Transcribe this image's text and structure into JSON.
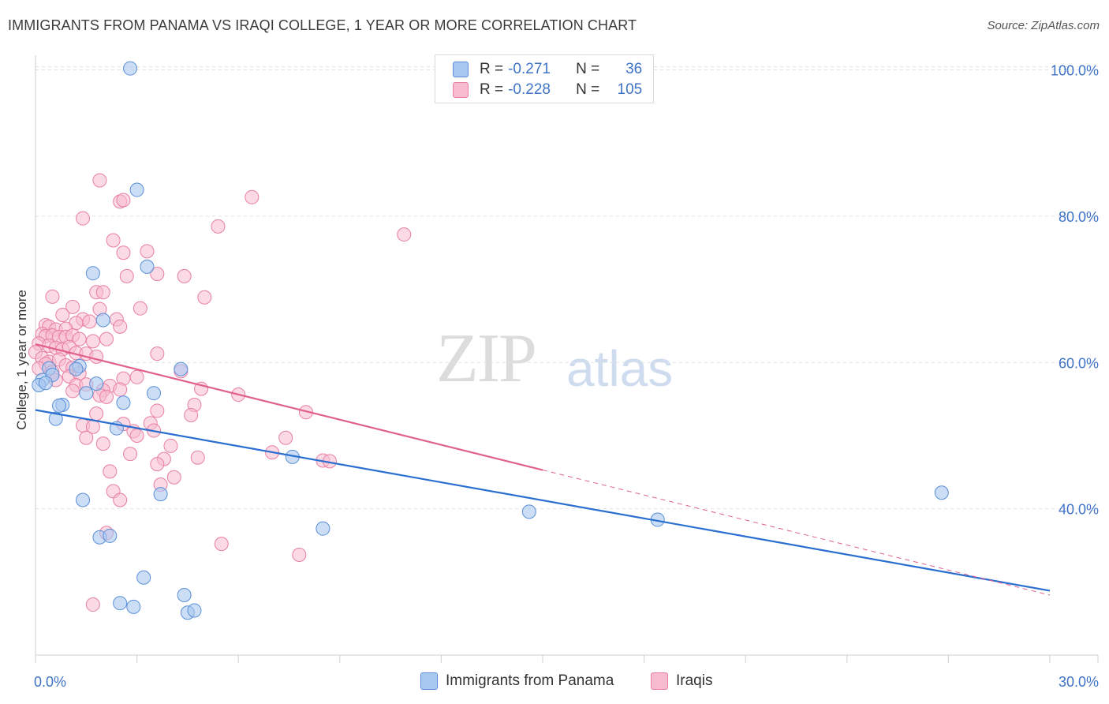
{
  "title": "IMMIGRANTS FROM PANAMA VS IRAQI COLLEGE, 1 YEAR OR MORE CORRELATION CHART",
  "source": "Source: ZipAtlas.com",
  "watermark": {
    "zip": "ZIP",
    "atlas": "atlas"
  },
  "legend_top": {
    "rows": [
      {
        "r_label": "R =",
        "r_value": "-0.271",
        "n_label": "N =",
        "n_value": "36"
      },
      {
        "r_label": "R =",
        "r_value": "-0.228",
        "n_label": "N =",
        "n_value": "105"
      }
    ]
  },
  "legend_bottom": {
    "panama": "Immigrants from Panama",
    "iraqis": "Iraqis"
  },
  "colors": {
    "panama_fill": "#a8c8f0",
    "panama_stroke": "#5a8fd8",
    "panama_line": "#2a6fd0",
    "iraqi_fill": "#f7bcd0",
    "iraqi_stroke": "#e87fa3",
    "iraqi_line": "#e0608a",
    "tick_label": "#3f73c8"
  },
  "chart_data": {
    "type": "scatter",
    "title": "IMMIGRANTS FROM PANAMA VS IRAQI COLLEGE, 1 YEAR OR MORE CORRELATION CHART",
    "xlabel": "",
    "ylabel": "College, 1 year or more",
    "xlim": [
      0,
      30
    ],
    "ylim": [
      20,
      102
    ],
    "x_tick_labels": [
      "0.0%",
      "30.0%"
    ],
    "y_ticks": [
      40,
      60,
      80,
      100
    ],
    "y_tick_labels": [
      "40.0%",
      "60.0%",
      "80.0%",
      "100.0%"
    ],
    "series": [
      {
        "name": "Immigrants from Panama",
        "r": -0.271,
        "n": 36,
        "trend": {
          "x0": 0,
          "y0": 53.5,
          "x1": 30,
          "y1": 28.8
        },
        "points": [
          [
            2.8,
            100.2
          ],
          [
            3.0,
            83.6
          ],
          [
            1.7,
            72.2
          ],
          [
            3.3,
            73.1
          ],
          [
            2.0,
            65.8
          ],
          [
            0.4,
            59.2
          ],
          [
            0.2,
            57.6
          ],
          [
            0.5,
            58.3
          ],
          [
            1.3,
            59.5
          ],
          [
            0.1,
            56.9
          ],
          [
            0.3,
            57.2
          ],
          [
            1.2,
            59.1
          ],
          [
            1.8,
            57.1
          ],
          [
            1.5,
            55.8
          ],
          [
            3.5,
            55.8
          ],
          [
            0.8,
            54.2
          ],
          [
            2.6,
            54.5
          ],
          [
            0.7,
            54.1
          ],
          [
            0.6,
            52.3
          ],
          [
            2.4,
            51.0
          ],
          [
            4.3,
            59.1
          ],
          [
            7.6,
            47.1
          ],
          [
            1.4,
            41.2
          ],
          [
            3.7,
            42.0
          ],
          [
            1.9,
            36.1
          ],
          [
            2.2,
            36.3
          ],
          [
            8.5,
            37.3
          ],
          [
            14.6,
            39.6
          ],
          [
            18.4,
            38.5
          ],
          [
            26.8,
            42.2
          ],
          [
            3.2,
            30.6
          ],
          [
            2.5,
            27.1
          ],
          [
            2.9,
            26.6
          ],
          [
            4.4,
            28.2
          ],
          [
            4.5,
            25.8
          ],
          [
            4.7,
            26.1
          ]
        ]
      },
      {
        "name": "Iraqis",
        "r": -0.228,
        "n": 105,
        "trend": {
          "x0": 0,
          "y0": 62.5,
          "x1": 15.0,
          "y1": 45.3
        },
        "trend_dashed": {
          "x0": 15.0,
          "y0": 45.3,
          "x1": 30,
          "y1": 28.2
        },
        "points": [
          [
            1.9,
            84.9
          ],
          [
            2.5,
            82.0
          ],
          [
            2.6,
            82.2
          ],
          [
            6.4,
            82.6
          ],
          [
            1.4,
            79.7
          ],
          [
            5.4,
            78.6
          ],
          [
            10.9,
            77.5
          ],
          [
            2.3,
            76.7
          ],
          [
            2.6,
            75.0
          ],
          [
            3.3,
            75.2
          ],
          [
            2.7,
            71.8
          ],
          [
            3.6,
            72.1
          ],
          [
            4.4,
            71.8
          ],
          [
            1.8,
            69.6
          ],
          [
            2.0,
            69.6
          ],
          [
            5.0,
            68.9
          ],
          [
            0.5,
            69.0
          ],
          [
            3.1,
            67.4
          ],
          [
            1.1,
            67.6
          ],
          [
            1.9,
            67.3
          ],
          [
            0.8,
            66.5
          ],
          [
            1.4,
            65.9
          ],
          [
            2.4,
            65.9
          ],
          [
            1.2,
            65.4
          ],
          [
            1.6,
            65.6
          ],
          [
            0.3,
            65.1
          ],
          [
            0.4,
            64.9
          ],
          [
            0.6,
            64.5
          ],
          [
            0.9,
            64.6
          ],
          [
            2.5,
            64.9
          ],
          [
            0.2,
            63.9
          ],
          [
            0.3,
            63.6
          ],
          [
            0.5,
            63.7
          ],
          [
            0.7,
            63.5
          ],
          [
            0.9,
            63.5
          ],
          [
            1.1,
            63.7
          ],
          [
            1.3,
            63.2
          ],
          [
            1.7,
            62.9
          ],
          [
            2.1,
            63.2
          ],
          [
            0.1,
            62.6
          ],
          [
            0.4,
            62.3
          ],
          [
            0.6,
            62.0
          ],
          [
            0.8,
            61.8
          ],
          [
            1.0,
            62.1
          ],
          [
            1.2,
            61.3
          ],
          [
            1.5,
            61.2
          ],
          [
            1.8,
            60.8
          ],
          [
            3.6,
            61.2
          ],
          [
            0.0,
            61.4
          ],
          [
            0.2,
            60.6
          ],
          [
            0.4,
            60.1
          ],
          [
            0.7,
            60.4
          ],
          [
            0.3,
            59.8
          ],
          [
            0.9,
            59.6
          ],
          [
            1.1,
            59.3
          ],
          [
            0.1,
            59.2
          ],
          [
            0.5,
            58.7
          ],
          [
            1.0,
            58.1
          ],
          [
            1.3,
            58.5
          ],
          [
            4.3,
            58.8
          ],
          [
            0.6,
            57.6
          ],
          [
            1.2,
            56.9
          ],
          [
            2.2,
            56.8
          ],
          [
            2.6,
            57.8
          ],
          [
            1.5,
            57.0
          ],
          [
            2.0,
            56.2
          ],
          [
            2.5,
            56.3
          ],
          [
            4.9,
            56.4
          ],
          [
            1.1,
            56.1
          ],
          [
            1.9,
            55.5
          ],
          [
            6.0,
            55.6
          ],
          [
            2.1,
            55.3
          ],
          [
            1.8,
            53.0
          ],
          [
            4.7,
            54.2
          ],
          [
            3.6,
            53.4
          ],
          [
            4.6,
            52.8
          ],
          [
            8.0,
            53.2
          ],
          [
            1.4,
            51.4
          ],
          [
            1.7,
            51.2
          ],
          [
            2.6,
            51.6
          ],
          [
            3.4,
            51.7
          ],
          [
            2.9,
            50.6
          ],
          [
            3.5,
            50.7
          ],
          [
            3.0,
            50.0
          ],
          [
            1.5,
            49.7
          ],
          [
            2.0,
            48.9
          ],
          [
            7.4,
            49.7
          ],
          [
            4.0,
            48.6
          ],
          [
            7.0,
            47.7
          ],
          [
            2.8,
            47.5
          ],
          [
            3.8,
            46.8
          ],
          [
            4.8,
            47.0
          ],
          [
            8.5,
            46.6
          ],
          [
            3.6,
            46.1
          ],
          [
            8.7,
            46.5
          ],
          [
            2.2,
            45.1
          ],
          [
            4.1,
            44.3
          ],
          [
            3.7,
            43.3
          ],
          [
            2.3,
            42.4
          ],
          [
            2.5,
            41.2
          ],
          [
            2.1,
            36.7
          ],
          [
            5.5,
            35.2
          ],
          [
            7.8,
            33.7
          ],
          [
            1.7,
            26.9
          ],
          [
            3.0,
            58.0
          ]
        ]
      }
    ]
  }
}
